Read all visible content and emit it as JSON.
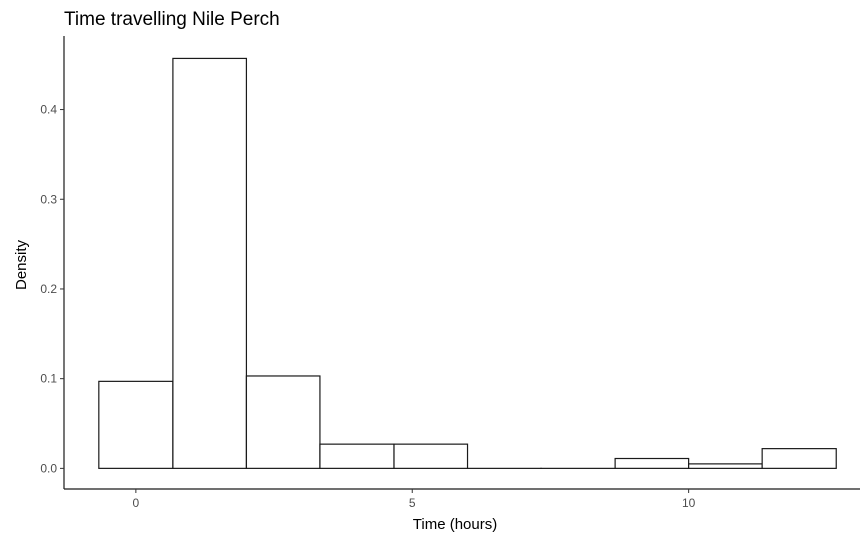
{
  "chart_data": {
    "type": "bar",
    "title": "Time travelling Nile Perch",
    "xlabel": "Time (hours)",
    "ylabel": "Density",
    "xlim": [
      -1.3,
      13.1
    ],
    "ylim": [
      -0.023,
      0.482
    ],
    "x_ticks": [
      0,
      5,
      10
    ],
    "y_ticks": [
      0.0,
      0.1,
      0.2,
      0.3,
      0.4
    ],
    "x_tick_labels": [
      "0",
      "5",
      "10"
    ],
    "y_tick_labels": [
      "0.0",
      "0.1",
      "0.2",
      "0.3",
      "0.4"
    ],
    "grid": false,
    "bins": [
      {
        "x0": -0.67,
        "x1": 0.67,
        "y": 0.097
      },
      {
        "x0": 0.67,
        "x1": 2.0,
        "y": 0.457
      },
      {
        "x0": 2.0,
        "x1": 3.33,
        "y": 0.103
      },
      {
        "x0": 3.33,
        "x1": 4.67,
        "y": 0.027
      },
      {
        "x0": 4.67,
        "x1": 6.0,
        "y": 0.027
      },
      {
        "x0": 6.0,
        "x1": 7.33,
        "y": 0.0
      },
      {
        "x0": 7.33,
        "x1": 8.67,
        "y": 0.0
      },
      {
        "x0": 8.67,
        "x1": 10.0,
        "y": 0.011
      },
      {
        "x0": 10.0,
        "x1": 11.33,
        "y": 0.005
      },
      {
        "x0": 11.33,
        "x1": 12.67,
        "y": 0.022
      }
    ]
  }
}
